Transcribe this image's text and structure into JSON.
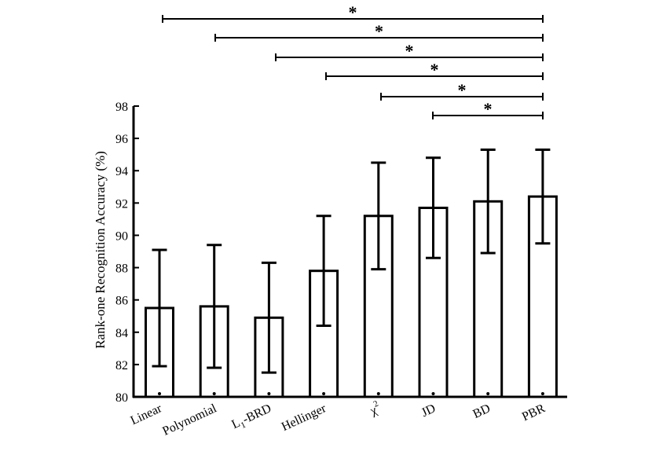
{
  "chart_data": {
    "type": "bar",
    "title": "",
    "xlabel": "",
    "ylabel": "Rank-one Recognition Accuracy (%)",
    "ylim": [
      80,
      98
    ],
    "yticks": [
      80,
      82,
      84,
      86,
      88,
      90,
      92,
      94,
      96,
      98
    ],
    "grid": false,
    "categories": [
      "Linear",
      "Polynomial",
      "L1-BRD",
      "Hellinger",
      "χ2",
      "JD",
      "BD",
      "PBR"
    ],
    "category_display": [
      {
        "main": "Linear",
        "sub": "",
        "sup": "",
        "rest": ""
      },
      {
        "main": "Polynomial",
        "sub": "",
        "sup": "",
        "rest": ""
      },
      {
        "main": "L",
        "sub": "1",
        "sup": "",
        "rest": "-BRD"
      },
      {
        "main": "Hellinger",
        "sub": "",
        "sup": "",
        "rest": ""
      },
      {
        "main": "χ",
        "sub": "",
        "sup": "2",
        "rest": ""
      },
      {
        "main": "JD",
        "sub": "",
        "sup": "",
        "rest": ""
      },
      {
        "main": "BD",
        "sub": "",
        "sup": "",
        "rest": ""
      },
      {
        "main": "PBR",
        "sub": "",
        "sup": "",
        "rest": ""
      }
    ],
    "values": [
      85.5,
      85.6,
      84.9,
      87.8,
      91.2,
      91.7,
      92.1,
      92.4
    ],
    "error_low": [
      81.9,
      81.8,
      81.5,
      84.4,
      87.9,
      88.6,
      88.9,
      89.5
    ],
    "error_high": [
      89.1,
      89.4,
      88.3,
      91.2,
      94.5,
      94.8,
      95.3,
      95.3
    ],
    "significance": [
      {
        "from": "Linear",
        "to": "PBR",
        "label": "*"
      },
      {
        "from": "Polynomial",
        "to": "PBR",
        "label": "*"
      },
      {
        "from": "L1-BRD",
        "to": "PBR",
        "label": "*"
      },
      {
        "from": "Hellinger",
        "to": "PBR",
        "label": "*"
      },
      {
        "from": "χ2",
        "to": "PBR",
        "label": "*"
      },
      {
        "from": "JD",
        "to": "PBR",
        "label": "*"
      }
    ]
  }
}
